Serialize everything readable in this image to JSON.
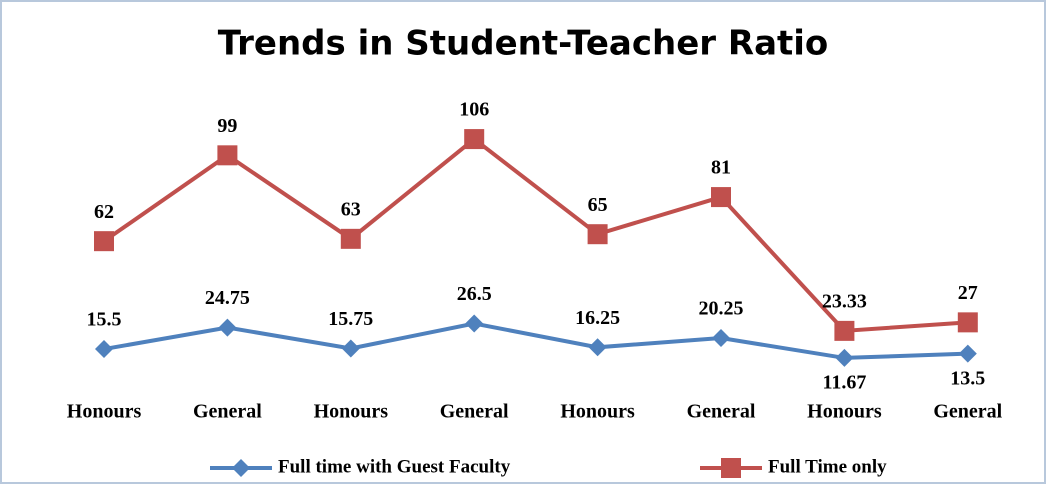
{
  "chart_data": {
    "type": "line",
    "title": "Trends in Student-Teacher Ratio",
    "categories": [
      "Honours",
      "General",
      "Honours",
      "General",
      "Honours",
      "General",
      "Honours",
      "General"
    ],
    "series": [
      {
        "name": "Full time with Guest Faculty",
        "color": "#4f81bd",
        "marker": "diamond",
        "values": [
          15.5,
          24.75,
          15.75,
          26.5,
          16.25,
          20.25,
          11.67,
          13.5
        ]
      },
      {
        "name": "Full Time only",
        "color": "#c0504d",
        "marker": "square",
        "values": [
          62,
          99,
          63,
          106,
          65,
          81,
          23.33,
          27
        ]
      }
    ],
    "legend": "bottom"
  }
}
